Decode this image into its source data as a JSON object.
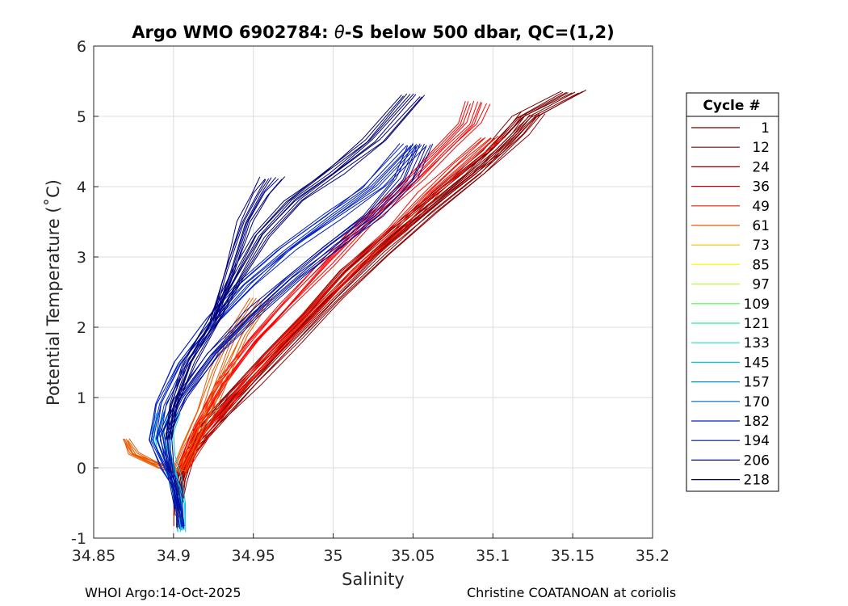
{
  "chart_data": {
    "type": "line",
    "title": "Argo WMO 6902784: θ-S below 500 dbar,  QC=(1,2)",
    "title_parts": {
      "prefix": "Argo WMO 6902784: ",
      "symbol": "θ",
      "suffix": "-S below 500 dbar,  QC=(1,2)"
    },
    "xlabel": "Salinity",
    "ylabel": "Potential Temperature (˚C)",
    "xlim": [
      34.85,
      35.2
    ],
    "ylim": [
      -1,
      6
    ],
    "xticks": [
      "34.85",
      "34.9",
      "34.95",
      "35",
      "35.05",
      "35.1",
      "35.15",
      "35.2"
    ],
    "yticks": [
      "-1",
      "0",
      "1",
      "2",
      "3",
      "4",
      "5",
      "6"
    ],
    "grid": true,
    "legend_title": "Cycle #",
    "legend_location": "outside-right",
    "legend": [
      {
        "label": "1",
        "color": "#6e0000"
      },
      {
        "label": "12",
        "color": "#800000"
      },
      {
        "label": "24",
        "color": "#990000"
      },
      {
        "label": "36",
        "color": "#c20000"
      },
      {
        "label": "49",
        "color": "#ee1a00"
      },
      {
        "label": "61",
        "color": "#ea5a00"
      },
      {
        "label": "73",
        "color": "#f2c200"
      },
      {
        "label": "85",
        "color": "#ffff00"
      },
      {
        "label": "97",
        "color": "#b2ff40"
      },
      {
        "label": "109",
        "color": "#40ff40"
      },
      {
        "label": "121",
        "color": "#20f090"
      },
      {
        "label": "133",
        "color": "#20e0c0"
      },
      {
        "label": "145",
        "color": "#00c8e0"
      },
      {
        "label": "157",
        "color": "#0096c0"
      },
      {
        "label": "170",
        "color": "#0064d0"
      },
      {
        "label": "182",
        "color": "#0020c0"
      },
      {
        "label": "194",
        "color": "#001099"
      },
      {
        "label": "206",
        "color": "#000c80"
      },
      {
        "label": "218",
        "color": "#000066"
      }
    ],
    "series": [
      {
        "name": "dark red (cycles 1-36) envelope upper",
        "color": "#7a0000",
        "points": [
          [
            34.903,
            -0.85
          ],
          [
            34.903,
            -0.3
          ],
          [
            34.905,
            0
          ],
          [
            34.915,
            0.5
          ],
          [
            34.935,
            1.0
          ],
          [
            34.96,
            1.6
          ],
          [
            34.985,
            2.2
          ],
          [
            35.01,
            2.8
          ],
          [
            35.04,
            3.4
          ],
          [
            35.07,
            3.95
          ],
          [
            35.1,
            4.5
          ],
          [
            35.12,
            5.0
          ],
          [
            35.15,
            5.35
          ]
        ]
      },
      {
        "name": "dark red envelope lower",
        "color": "#8b0000",
        "points": [
          [
            34.903,
            -0.7
          ],
          [
            34.905,
            -0.2
          ],
          [
            34.91,
            0.2
          ],
          [
            34.925,
            0.6
          ],
          [
            34.95,
            1.2
          ],
          [
            34.975,
            1.8
          ],
          [
            35.0,
            2.4
          ],
          [
            35.03,
            3.05
          ],
          [
            35.06,
            3.65
          ],
          [
            35.09,
            4.2
          ],
          [
            35.115,
            4.75
          ],
          [
            35.125,
            5.05
          ]
        ]
      },
      {
        "name": "red (cycles 49-61) upper",
        "color": "#ff0000",
        "points": [
          [
            34.905,
            0
          ],
          [
            34.915,
            0.6
          ],
          [
            34.93,
            1.2
          ],
          [
            34.95,
            1.8
          ],
          [
            34.97,
            2.3
          ],
          [
            34.995,
            2.9
          ],
          [
            35.02,
            3.5
          ],
          [
            35.05,
            4.1
          ],
          [
            35.07,
            4.55
          ],
          [
            35.085,
            4.9
          ],
          [
            35.09,
            5.2
          ]
        ]
      },
      {
        "name": "red lower",
        "color": "#f01000",
        "points": [
          [
            34.905,
            -0.1
          ],
          [
            34.92,
            0.5
          ],
          [
            34.94,
            1.1
          ],
          [
            34.96,
            1.6
          ],
          [
            34.985,
            2.2
          ],
          [
            35.01,
            2.8
          ],
          [
            35.04,
            3.4
          ],
          [
            35.06,
            3.9
          ],
          [
            35.08,
            4.3
          ],
          [
            35.1,
            4.7
          ]
        ]
      },
      {
        "name": "orange (cycles 61-73)",
        "color": "#ea5a00",
        "points": [
          [
            34.87,
            0.4
          ],
          [
            34.875,
            0.2
          ],
          [
            34.885,
            0.1
          ],
          [
            34.895,
            0
          ],
          [
            34.903,
            -0.05
          ],
          [
            34.91,
            0.3
          ],
          [
            34.92,
            0.8
          ],
          [
            34.93,
            1.4
          ],
          [
            34.94,
            1.9
          ],
          [
            34.955,
            2.4
          ]
        ]
      },
      {
        "name": "cyan/green (cycles 97-157)",
        "color": "#00c8e0",
        "points": [
          [
            34.905,
            -0.9
          ],
          [
            34.904,
            -0.5
          ],
          [
            34.9,
            -0.1
          ],
          [
            34.895,
            0.2
          ],
          [
            34.893,
            0.5
          ],
          [
            34.897,
            0.8
          ]
        ]
      },
      {
        "name": "blue (cycles 170-182) upper",
        "color": "#0020c0",
        "points": [
          [
            34.905,
            -0.85
          ],
          [
            34.902,
            -0.3
          ],
          [
            34.895,
            0
          ],
          [
            34.888,
            0.4
          ],
          [
            34.892,
            0.9
          ],
          [
            34.905,
            1.5
          ],
          [
            34.925,
            2.1
          ],
          [
            34.945,
            2.6
          ],
          [
            34.97,
            3.1
          ],
          [
            35.0,
            3.6
          ],
          [
            35.025,
            4.0
          ],
          [
            35.05,
            4.6
          ]
        ]
      },
      {
        "name": "blue lower",
        "color": "#0010a0",
        "points": [
          [
            34.903,
            -0.6
          ],
          [
            34.898,
            0
          ],
          [
            34.895,
            0.5
          ],
          [
            34.905,
            1.0
          ],
          [
            34.925,
            1.6
          ],
          [
            34.95,
            2.2
          ],
          [
            34.975,
            2.7
          ],
          [
            35.0,
            3.15
          ],
          [
            35.025,
            3.6
          ],
          [
            35.045,
            4.1
          ],
          [
            35.055,
            4.6
          ]
        ]
      },
      {
        "name": "navy (cycles 194-218)",
        "color": "#000070",
        "points": [
          [
            34.897,
            0.4
          ],
          [
            34.9,
            0.9
          ],
          [
            34.91,
            1.5
          ],
          [
            34.925,
            2.1
          ],
          [
            34.94,
            2.7
          ],
          [
            34.955,
            3.3
          ],
          [
            34.975,
            3.8
          ],
          [
            35.0,
            4.2
          ],
          [
            35.025,
            4.65
          ],
          [
            35.05,
            5.3
          ]
        ]
      },
      {
        "name": "navy short branch",
        "color": "#000080",
        "points": [
          [
            34.925,
            2.1
          ],
          [
            34.935,
            2.8
          ],
          [
            34.945,
            3.5
          ],
          [
            34.955,
            3.9
          ],
          [
            34.962,
            4.12
          ]
        ]
      }
    ]
  },
  "footer": {
    "left": "WHOI Argo:14-Oct-2025",
    "right": "Christine COATANOAN at coriolis"
  }
}
